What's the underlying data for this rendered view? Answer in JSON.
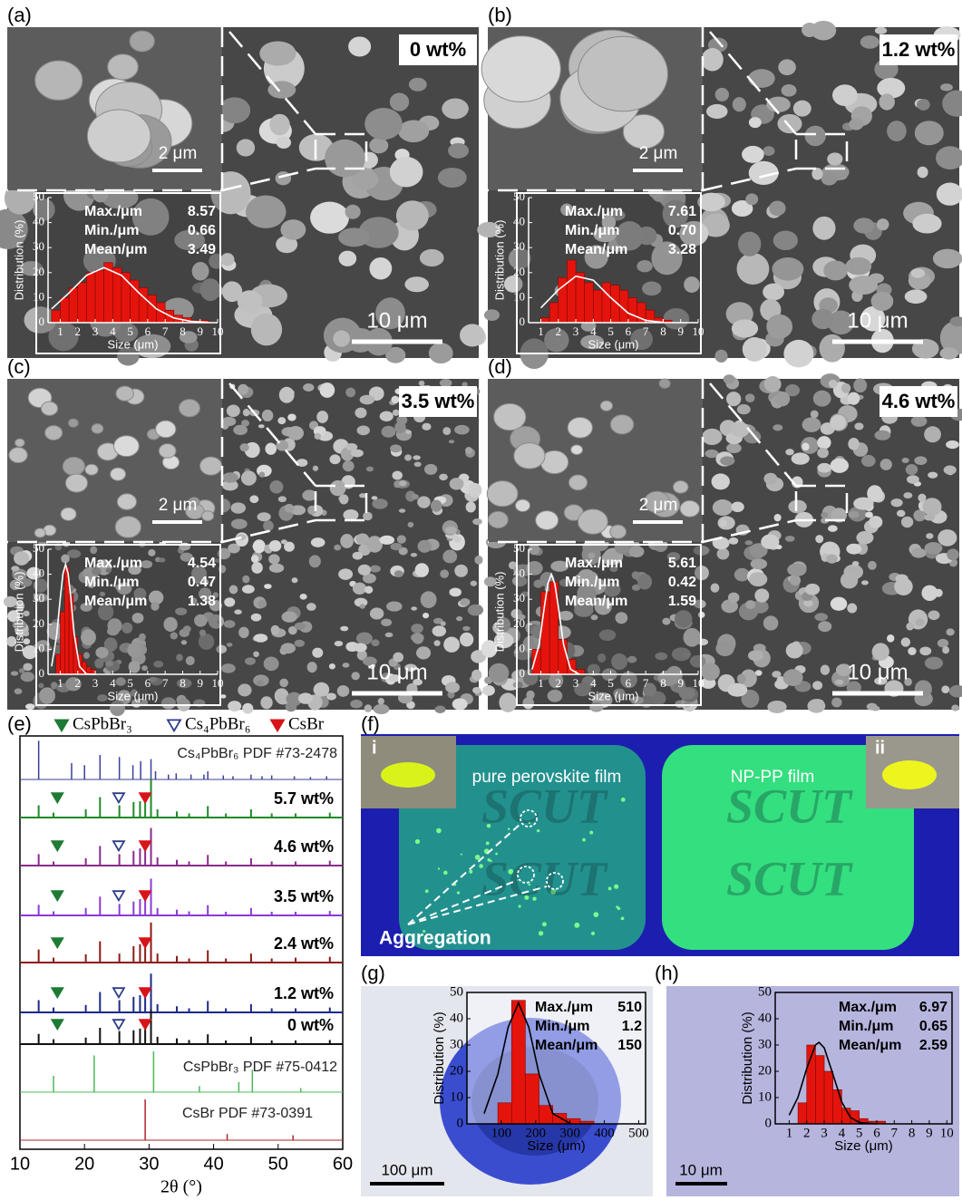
{
  "panels": [
    {
      "label": "(a)",
      "loading": "0 wt%",
      "inset_scale": "2 μm",
      "scale": "10 μm"
    },
    {
      "label": "(b)",
      "loading": "1.2 wt%",
      "inset_scale": "2 μm",
      "scale": "10 μm"
    },
    {
      "label": "(c)",
      "loading": "3.5 wt%",
      "inset_scale": "2 μm",
      "scale": "10 μm"
    },
    {
      "label": "(d)",
      "loading": "4.6 wt%",
      "inset_scale": "2 μm",
      "scale": "10 μm"
    },
    {
      "label": "(e)"
    },
    {
      "label": "(f)"
    },
    {
      "label": "(g)",
      "scale": "100 μm"
    },
    {
      "label": "(h)",
      "scale": "10 μm"
    }
  ],
  "photo": {
    "inset_labels": [
      "i",
      "ii"
    ],
    "films": [
      "pure perovskite film",
      "NP-PP film"
    ],
    "watermarks": [
      "SCUT",
      "SCUT",
      "SCUT",
      "SCUT"
    ],
    "annotation": "Aggregation"
  },
  "chart_data": [
    {
      "type": "histogram",
      "xlabel": "Size (μm)",
      "ylabel": "Distribution (%)",
      "color": "#e4140c",
      "fit_color": "#ffffff",
      "bins": [
        0.5,
        1,
        1.5,
        2,
        2.5,
        3,
        3.5,
        4,
        4.5,
        5,
        5.5,
        6,
        6.5,
        7,
        7.5,
        8,
        8.5,
        9,
        9.5
      ],
      "counts": [
        5,
        10,
        14,
        16,
        20,
        21,
        24,
        22,
        20,
        17,
        14,
        11,
        8,
        5,
        3,
        2,
        1,
        1
      ],
      "fit_x": [
        0.5,
        1.5,
        2.5,
        3.5,
        4.5,
        5.5,
        6.5,
        7.5,
        8.5,
        9.5
      ],
      "fit": [
        5.5,
        11.9,
        18.9,
        22,
        18.9,
        11.9,
        5.5,
        1.9,
        0.5,
        0.1
      ],
      "xlim": [
        0.3,
        10
      ],
      "xticks": [
        1,
        2,
        3,
        4,
        5,
        6,
        7,
        8,
        9,
        10
      ],
      "ylim": [
        0,
        50
      ],
      "yticks": [
        0,
        10,
        20,
        30,
        40,
        50
      ],
      "stats": [
        {
          "label": "Max./μm",
          "value": "8.57"
        },
        {
          "label": "Min./μm",
          "value": "0.66"
        },
        {
          "label": "Mean/μm",
          "value": "3.49"
        }
      ]
    },
    {
      "type": "histogram",
      "xlabel": "Size (μm)",
      "ylabel": "Distribution (%)",
      "color": "#e4140c",
      "fit_color": "#ffffff",
      "bins": [
        1,
        1.5,
        2,
        2.5,
        3,
        3.5,
        4,
        4.5,
        5,
        5.5,
        6,
        6.5,
        7,
        7.5,
        8,
        8.5
      ],
      "counts": [
        2,
        8,
        18,
        25,
        20,
        16,
        13,
        16,
        15,
        13,
        10,
        8,
        5,
        2,
        1
      ],
      "fit_x": [
        1,
        2,
        3,
        4,
        5,
        6,
        7,
        8
      ],
      "fit": [
        5.9,
        13.1,
        18.6,
        17,
        10,
        3.8,
        0.9,
        0.1
      ],
      "xlim": [
        0.3,
        10
      ],
      "xticks": [
        1,
        2,
        3,
        4,
        5,
        6,
        7,
        8,
        9,
        10
      ],
      "ylim": [
        0,
        50
      ],
      "yticks": [
        0,
        10,
        20,
        30,
        40,
        50
      ],
      "stats": [
        {
          "label": "Max./μm",
          "value": "7.61"
        },
        {
          "label": "Min./μm",
          "value": "0.70"
        },
        {
          "label": "Mean/μm",
          "value": "3.28"
        }
      ]
    },
    {
      "type": "histogram",
      "xlabel": "Size (μm)",
      "ylabel": "Distribution (%)",
      "color": "#e4140c",
      "fit_color": "#ffffff",
      "bins": [
        0.75,
        1,
        1.25,
        1.5,
        1.75,
        2,
        2.25,
        2.5,
        2.75,
        3
      ],
      "counts": [
        8,
        25,
        43,
        32,
        15,
        8,
        5,
        3,
        2
      ],
      "fit_x": [
        0.5,
        0.8,
        1.0,
        1.15,
        1.3,
        1.45,
        1.6,
        1.8,
        2.1,
        2.5,
        3
      ],
      "fit": [
        3.2,
        15.9,
        30.5,
        40.1,
        44,
        40.1,
        30.5,
        15.9,
        3.2,
        0.1,
        0
      ],
      "xlim": [
        0.3,
        10
      ],
      "xticks": [
        1,
        2,
        3,
        4,
        5,
        6,
        7,
        8,
        9,
        10
      ],
      "ylim": [
        0,
        50
      ],
      "yticks": [
        0,
        10,
        20,
        30,
        40,
        50
      ],
      "stats": [
        {
          "label": "Max./μm",
          "value": "4.54"
        },
        {
          "label": "Min./μm",
          "value": "0.47"
        },
        {
          "label": "Mean/μm",
          "value": "1.38"
        }
      ]
    },
    {
      "type": "histogram",
      "xlabel": "Size (μm)",
      "ylabel": "Distribution (%)",
      "color": "#e4140c",
      "fit_color": "#ffffff",
      "bins": [
        0.5,
        1,
        1.5,
        2,
        2.5,
        3,
        3.5
      ],
      "counts": [
        10,
        33,
        37,
        14,
        6,
        2
      ],
      "fit_x": [
        0.5,
        0.9,
        1.2,
        1.4,
        1.6,
        1.8,
        2.0,
        2.3,
        2.7,
        3.2
      ],
      "fit": [
        2,
        11.9,
        27,
        36.2,
        40,
        36.2,
        27,
        11.9,
        2,
        0
      ],
      "xlim": [
        0.3,
        10
      ],
      "xticks": [
        1,
        2,
        3,
        4,
        5,
        6,
        7,
        8,
        9,
        10
      ],
      "ylim": [
        0,
        50
      ],
      "yticks": [
        0,
        10,
        20,
        30,
        40,
        50
      ],
      "stats": [
        {
          "label": "Max./μm",
          "value": "5.61"
        },
        {
          "label": "Min./μm",
          "value": "0.42"
        },
        {
          "label": "Mean/μm",
          "value": "1.59"
        }
      ]
    },
    {
      "type": "xrd",
      "xlabel": "2θ (°)",
      "xlim": [
        10,
        60
      ],
      "xticks": [
        10,
        20,
        30,
        40,
        50,
        60
      ],
      "phases": [
        {
          "name": "CsPbBr₃",
          "color": "#1e7b34",
          "filled": true
        },
        {
          "name": "Cs₄PbBr₆",
          "color": "#2c3a8c",
          "filled": false
        },
        {
          "name": "CsBr",
          "color": "#d6141a",
          "filled": true
        }
      ],
      "series": [
        {
          "name": "Cs₄PbBr₆ PDF #73-2478",
          "color": "#3a3f9a",
          "x": [
            12.9,
            18.0,
            20.0,
            22.4,
            25.4,
            27.5,
            28.7,
            30.3,
            31.0,
            33.0,
            34.2,
            36.5,
            38.5,
            39.1,
            41.5,
            43.0,
            45.8,
            47.5,
            49.0,
            52.5,
            55.0,
            57.5
          ],
          "values": [
            95,
            40,
            35,
            60,
            55,
            35,
            45,
            50,
            20,
            12,
            15,
            12,
            12,
            20,
            10,
            8,
            12,
            8,
            10,
            8,
            6,
            8
          ],
          "markers": []
        },
        {
          "name": "5.7 wt%",
          "color": "#1f8a2a",
          "x": [
            12.9,
            15.2,
            20.2,
            22.4,
            25.4,
            27.6,
            28.6,
            29.4,
            30.3,
            31.3,
            34.3,
            36.2,
            39.1,
            41.9,
            45.8,
            49.0,
            52.7,
            58.0
          ],
          "values": [
            30,
            12,
            20,
            50,
            30,
            38,
            40,
            55,
            95,
            20,
            15,
            10,
            28,
            10,
            20,
            10,
            10,
            12
          ],
          "markers": [
            {
              "x": 15.8,
              "phase": 0
            },
            {
              "x": 25.3,
              "phase": 1
            },
            {
              "x": 29.4,
              "phase": 2
            }
          ]
        },
        {
          "name": "4.6 wt%",
          "color": "#8a2a8c",
          "x": [
            12.9,
            15.2,
            20.2,
            22.4,
            25.4,
            27.6,
            28.6,
            29.4,
            30.3,
            31.3,
            34.3,
            36.2,
            39.1,
            41.9,
            45.8,
            49.0,
            52.7,
            58.0
          ],
          "values": [
            28,
            10,
            18,
            48,
            28,
            36,
            42,
            50,
            92,
            20,
            14,
            10,
            26,
            10,
            18,
            10,
            10,
            12
          ],
          "markers": [
            {
              "x": 15.8,
              "phase": 0
            },
            {
              "x": 25.3,
              "phase": 1
            },
            {
              "x": 29.4,
              "phase": 2
            }
          ]
        },
        {
          "name": "3.5 wt%",
          "color": "#8a3ad6",
          "x": [
            12.9,
            15.2,
            20.2,
            22.4,
            25.4,
            27.6,
            28.6,
            29.4,
            30.3,
            31.3,
            34.3,
            36.2,
            39.1,
            41.9,
            45.8,
            49.0,
            52.7,
            58.0
          ],
          "values": [
            26,
            10,
            18,
            46,
            28,
            34,
            40,
            50,
            90,
            18,
            14,
            10,
            25,
            9,
            18,
            9,
            9,
            11
          ],
          "markers": [
            {
              "x": 15.8,
              "phase": 0
            },
            {
              "x": 25.3,
              "phase": 1
            },
            {
              "x": 29.4,
              "phase": 2
            }
          ]
        },
        {
          "name": "2.4 wt%",
          "color": "#8c1a14",
          "x": [
            12.9,
            15.2,
            20.2,
            22.4,
            25.4,
            27.6,
            28.6,
            29.4,
            30.3,
            31.3,
            34.3,
            36.2,
            39.1,
            41.9,
            45.8,
            49.0,
            52.7,
            58.0
          ],
          "values": [
            32,
            12,
            20,
            52,
            22,
            40,
            45,
            60,
            98,
            22,
            16,
            10,
            30,
            10,
            22,
            10,
            12,
            14
          ],
          "markers": [
            {
              "x": 15.8,
              "phase": 0
            },
            {
              "x": 29.4,
              "phase": 2
            }
          ]
        },
        {
          "name": "1.2 wt%",
          "color": "#1c2a8a",
          "x": [
            12.9,
            15.2,
            20.2,
            22.4,
            25.4,
            27.6,
            28.6,
            29.4,
            30.3,
            31.3,
            34.3,
            36.2,
            39.1,
            41.9,
            45.8,
            49.0,
            52.7,
            58.0
          ],
          "values": [
            30,
            12,
            18,
            50,
            30,
            38,
            42,
            55,
            95,
            20,
            15,
            10,
            28,
            10,
            20,
            10,
            10,
            12
          ],
          "markers": [
            {
              "x": 15.8,
              "phase": 0
            },
            {
              "x": 25.3,
              "phase": 1
            },
            {
              "x": 29.4,
              "phase": 2
            }
          ]
        },
        {
          "name": "0 wt%",
          "color": "#111111",
          "x": [
            12.9,
            15.2,
            20.2,
            22.4,
            25.4,
            27.6,
            28.6,
            29.4,
            30.3,
            31.3,
            34.3,
            36.2,
            39.1,
            41.9,
            45.8,
            49.0,
            52.7,
            58.0
          ],
          "values": [
            25,
            12,
            16,
            40,
            32,
            34,
            38,
            40,
            85,
            18,
            14,
            10,
            24,
            9,
            18,
            9,
            9,
            10
          ],
          "markers": [
            {
              "x": 15.8,
              "phase": 0
            },
            {
              "x": 25.3,
              "phase": 1
            },
            {
              "x": 29.4,
              "phase": 2
            }
          ]
        },
        {
          "name": "CsPbBr₃ PDF #75-0412",
          "color": "#4cb85a",
          "x": [
            15.2,
            21.5,
            30.7,
            37.8,
            43.9,
            46.0,
            53.5
          ],
          "values": [
            40,
            90,
            100,
            15,
            25,
            55,
            10
          ],
          "markers": []
        },
        {
          "name": "CsBr PDF #73-0391",
          "color": "#b2242a",
          "x": [
            29.4,
            42.1,
            52.3
          ],
          "values": [
            100,
            15,
            12
          ],
          "markers": []
        }
      ]
    },
    {
      "type": "histogram",
      "xlabel": "Size (μm)",
      "ylabel": "Distribution (%)",
      "color": "#e4140c",
      "fit_color": "#000000",
      "bins": [
        90,
        130,
        170,
        210,
        250,
        290,
        330,
        370
      ],
      "counts": [
        8,
        47,
        19,
        7,
        4,
        2,
        1
      ],
      "fit_x": [
        50,
        90,
        120,
        150,
        180,
        210,
        250,
        300
      ],
      "fit": [
        3.9,
        18.9,
        36.8,
        46,
        36.8,
        18.9,
        3.9,
        0.2
      ],
      "xlim": [
        0,
        520
      ],
      "xticks": [
        100,
        200,
        300,
        400,
        500
      ],
      "ylim": [
        0,
        50
      ],
      "yticks": [
        0,
        10,
        20,
        30,
        40,
        50
      ],
      "stats": [
        {
          "label": "Max./μm",
          "value": "510"
        },
        {
          "label": "Min./μm",
          "value": "1.2"
        },
        {
          "label": "Mean/μm",
          "value": "150"
        }
      ]
    },
    {
      "type": "histogram",
      "xlabel": "Size (μm)",
      "ylabel": "Distribution (%)",
      "color": "#e4140c",
      "fit_color": "#000000",
      "bins": [
        1.5,
        2,
        2.5,
        3,
        3.5,
        4,
        4.5,
        5,
        5.5,
        6,
        6.5
      ],
      "counts": [
        8,
        30,
        26,
        20,
        13,
        6,
        5,
        2,
        1,
        1
      ],
      "fit_x": [
        1,
        1.5,
        2,
        2.5,
        2.7,
        3,
        3.5,
        4,
        4.5,
        5,
        6
      ],
      "fit": [
        3.3,
        10.1,
        21.1,
        30,
        31,
        28.9,
        18.8,
        8.3,
        2.4,
        0.5,
        0
      ],
      "xlim": [
        0.2,
        10.3
      ],
      "xticks": [
        1,
        2,
        3,
        4,
        5,
        6,
        7,
        8,
        9,
        10
      ],
      "ylim": [
        0,
        50
      ],
      "yticks": [
        0,
        10,
        20,
        30,
        40,
        50
      ],
      "stats": [
        {
          "label": "Max./μm",
          "value": "6.97"
        },
        {
          "label": "Min./μm",
          "value": "0.65"
        },
        {
          "label": "Mean/μm",
          "value": "2.59"
        }
      ]
    }
  ]
}
